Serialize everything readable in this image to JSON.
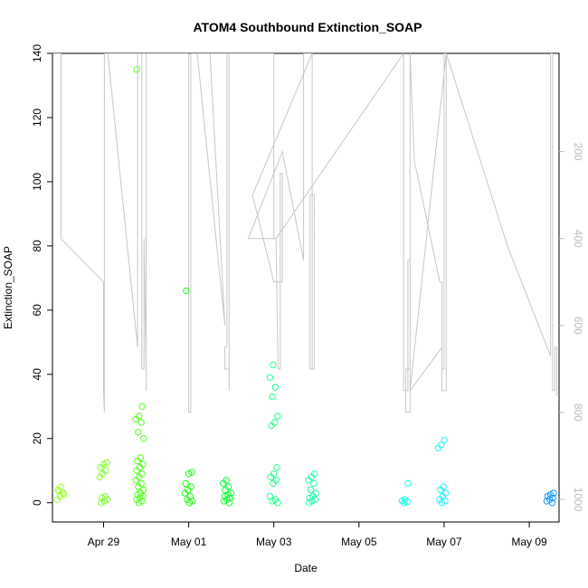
{
  "chart_data": {
    "type": "scatter",
    "title": "ATOM4 Southbound Extinction_SOAP",
    "xlabel": "Date",
    "ylabel": "Extinction_SOAP",
    "x_ticks": [
      "Apr 29",
      "May 01",
      "May 03",
      "May 05",
      "May 07",
      "May 09"
    ],
    "x_tick_days": [
      0,
      2,
      4,
      6,
      8,
      10
    ],
    "x_range_days": [
      -1.2,
      10.7
    ],
    "ylim": [
      -6,
      140
    ],
    "y_ticks": [
      0,
      20,
      40,
      60,
      80,
      100,
      120,
      140
    ],
    "y2_ticks": [
      200,
      400,
      600,
      800,
      1000
    ],
    "y2lim": [
      1052,
      -26
    ],
    "y2_color": "#bdbdbd",
    "line_color": "#c8c8c8",
    "grid": false,
    "scatter_clusters": [
      {
        "x": -1.0,
        "color": "#9cff33",
        "values": [
          1,
          2,
          3,
          4,
          5,
          2.5,
          3.5
        ]
      },
      {
        "x": 0.0,
        "color": "#7cff2a",
        "values": [
          0,
          0.5,
          1,
          1.5,
          2,
          8,
          9,
          10,
          11,
          12,
          12.5
        ]
      },
      {
        "x": 0.85,
        "color": "#55ff1f",
        "values": [
          0,
          0.5,
          1,
          1.5,
          2,
          2.5,
          3,
          4,
          5,
          6,
          7,
          8,
          9,
          10,
          11,
          12,
          13,
          14,
          20,
          22,
          25,
          26,
          27,
          30,
          135
        ]
      },
      {
        "x": 2.0,
        "color": "#22ff11",
        "values": [
          0,
          0.5,
          1,
          2,
          3,
          4,
          5,
          6,
          9,
          9.5,
          66
        ]
      },
      {
        "x": 2.9,
        "color": "#11ff33",
        "values": [
          0,
          0.5,
          1,
          1.5,
          2,
          2.5,
          3,
          4,
          5,
          6,
          7
        ]
      },
      {
        "x": 4.0,
        "color": "#22ff88",
        "values": [
          0,
          0.5,
          1,
          2,
          6,
          7,
          8,
          9,
          11,
          24,
          25,
          27,
          33,
          36,
          39,
          43
        ]
      },
      {
        "x": 4.9,
        "color": "#22ffaa",
        "values": [
          0,
          0.5,
          1,
          1.5,
          2,
          3,
          4,
          6,
          7,
          8,
          9
        ]
      },
      {
        "x": 7.1,
        "color": "#11ffee",
        "values": [
          0,
          0.3,
          0.6,
          1,
          6
        ]
      },
      {
        "x": 7.95,
        "color": "#22eeff",
        "values": [
          0,
          0.5,
          1,
          2,
          3,
          4,
          5,
          17,
          18,
          19.5
        ]
      },
      {
        "x": 10.5,
        "color": "#1199ff",
        "values": [
          0,
          0.5,
          1,
          1.5,
          2,
          2.5,
          3
        ]
      }
    ],
    "secondary_line": [
      [
        -1.3,
        -26
      ],
      [
        -1.0,
        -26
      ],
      [
        -1.0,
        400
      ],
      [
        0.0,
        500
      ],
      [
        0.0,
        750
      ],
      [
        0.02,
        800
      ],
      [
        0.02,
        -26
      ],
      [
        0.9,
        -26
      ],
      [
        0.9,
        700
      ],
      [
        0.95,
        700
      ],
      [
        0.95,
        400
      ],
      [
        1.0,
        700
      ],
      [
        1.0,
        750
      ],
      [
        1.0,
        -26
      ],
      [
        0.8,
        -26
      ],
      [
        0.8,
        650
      ],
      [
        0.1,
        -26
      ],
      [
        2.0,
        -26
      ],
      [
        2.0,
        800
      ],
      [
        2.05,
        800
      ],
      [
        2.05,
        -26
      ],
      [
        2.9,
        -26
      ],
      [
        2.9,
        650
      ],
      [
        2.85,
        650
      ],
      [
        2.85,
        700
      ],
      [
        2.95,
        700
      ],
      [
        2.95,
        750
      ],
      [
        2.95,
        -26
      ],
      [
        2.5,
        -26
      ],
      [
        2.85,
        600
      ],
      [
        2.2,
        -26
      ],
      [
        4.0,
        -26
      ],
      [
        4.0,
        400
      ],
      [
        4.05,
        400
      ],
      [
        4.1,
        700
      ],
      [
        4.15,
        700
      ],
      [
        4.15,
        250
      ],
      [
        4.2,
        250
      ],
      [
        4.2,
        500
      ],
      [
        4.0,
        500
      ],
      [
        3.5,
        300
      ],
      [
        4.9,
        -26
      ],
      [
        4.9,
        700
      ],
      [
        4.95,
        700
      ],
      [
        4.95,
        300
      ],
      [
        4.85,
        300
      ],
      [
        4.85,
        700
      ],
      [
        4.9,
        700
      ],
      [
        4.9,
        -26
      ],
      [
        4.7,
        -26
      ],
      [
        4.7,
        450
      ],
      [
        4.2,
        200
      ],
      [
        3.4,
        400
      ],
      [
        4.05,
        400
      ],
      [
        7.05,
        -26
      ],
      [
        7.05,
        750
      ],
      [
        7.15,
        750
      ],
      [
        7.15,
        450
      ],
      [
        7.2,
        450
      ],
      [
        7.2,
        700
      ],
      [
        7.1,
        700
      ],
      [
        7.1,
        800
      ],
      [
        7.2,
        800
      ],
      [
        7.2,
        -26
      ],
      [
        7.3,
        220
      ],
      [
        7.9,
        500
      ],
      [
        7.95,
        500
      ],
      [
        7.95,
        700
      ],
      [
        8.0,
        700
      ],
      [
        8.0,
        -26
      ],
      [
        8.05,
        -26
      ],
      [
        8.05,
        750
      ],
      [
        7.95,
        750
      ],
      [
        7.95,
        650
      ],
      [
        7.2,
        750
      ],
      [
        8.05,
        -26
      ],
      [
        9.5,
        420
      ],
      [
        10.5,
        670
      ],
      [
        10.5,
        -26
      ],
      [
        10.55,
        -26
      ],
      [
        10.55,
        750
      ],
      [
        10.6,
        750
      ],
      [
        10.6,
        650
      ],
      [
        10.65,
        650
      ],
      [
        10.65,
        760
      ],
      [
        10.7,
        760
      ]
    ]
  }
}
